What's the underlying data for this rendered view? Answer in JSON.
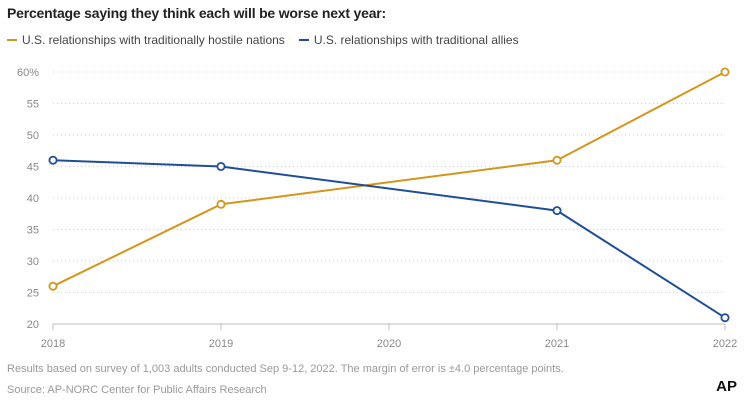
{
  "chart_data": {
    "type": "line",
    "title": "Percentage saying they think each will be worse next year:",
    "x": [
      "2018",
      "2019",
      "2020",
      "2021",
      "2022"
    ],
    "series": [
      {
        "name": "U.S. relationships with traditionally hostile nations",
        "color": "#d4951a",
        "values": [
          26,
          39,
          null,
          46,
          60
        ]
      },
      {
        "name": "U.S. relationships with traditional allies",
        "color": "#1f4e96",
        "values": [
          46,
          45,
          null,
          38,
          21
        ]
      }
    ],
    "y_ticks": [
      "20",
      "25",
      "30",
      "35",
      "40",
      "45",
      "50",
      "55",
      "60%"
    ],
    "ylim": [
      20,
      60
    ],
    "grid": "horizontal dotted",
    "legend_position": "top-left"
  },
  "footnote": "Results based on survey of 1,003 adults conducted Sep 9-12, 2022. The margin of error is ±4.0 percentage points.",
  "source": "Source: AP-NORC Center for Public Affairs Research",
  "logo": "AP"
}
